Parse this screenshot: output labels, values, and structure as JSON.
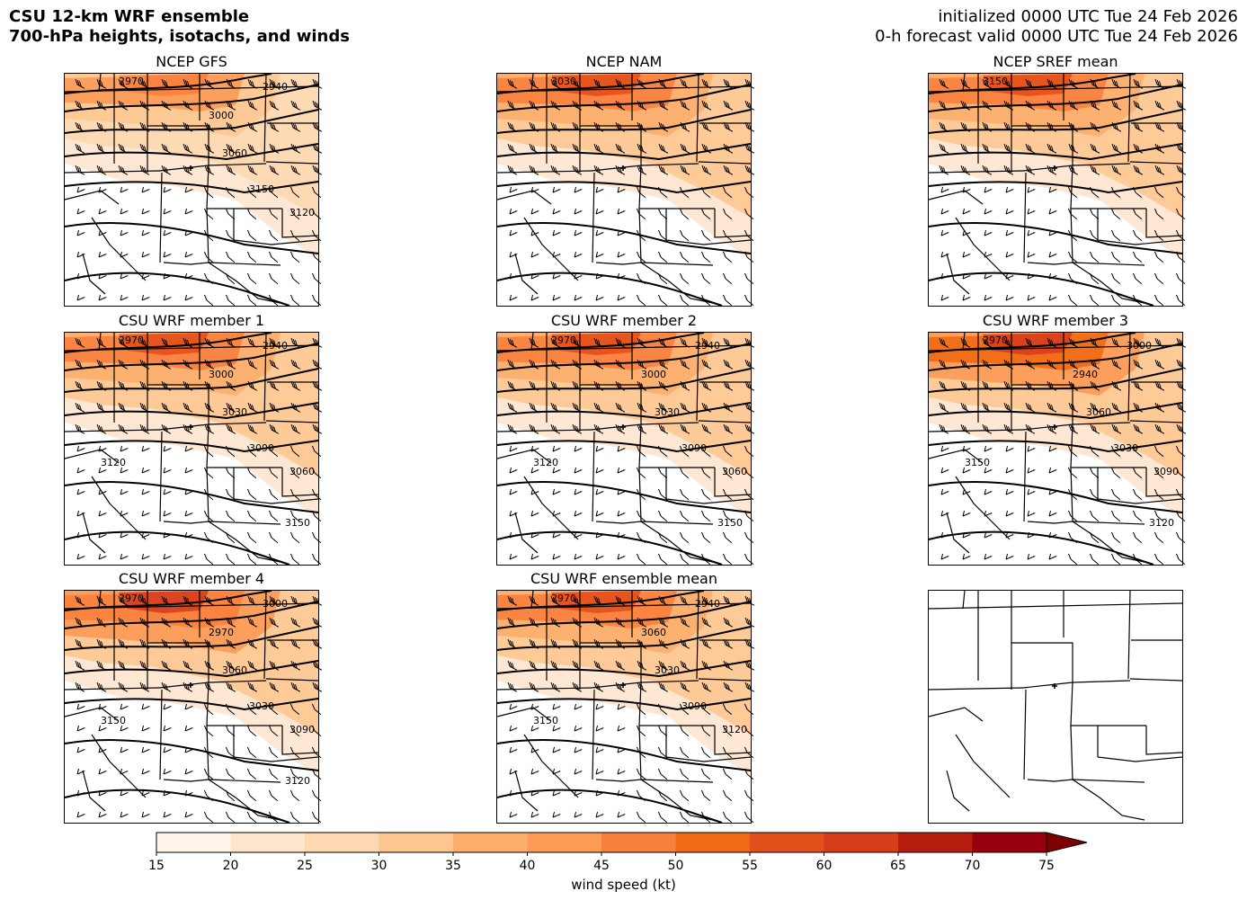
{
  "header": {
    "title_line1": "CSU 12-km WRF ensemble",
    "title_line2": "700-hPa heights, isotachs, and winds",
    "init_line": "initialized 0000 UTC Tue 24 Feb 2026",
    "valid_line": "0-h forecast valid 0000 UTC Tue 24 Feb 2026"
  },
  "panels": [
    {
      "title": "NCEP GFS",
      "contour_labels": [
        "2970",
        "2940",
        "3000",
        "3060",
        "3150",
        "3120"
      ],
      "jet_intensity": 0.7
    },
    {
      "title": "NCEP NAM",
      "contour_labels": [
        "3030"
      ],
      "jet_intensity": 0.85
    },
    {
      "title": "NCEP SREF mean",
      "contour_labels": [
        "3150"
      ],
      "jet_intensity": 0.9
    },
    {
      "title": "CSU WRF member 1",
      "contour_labels": [
        "2970",
        "2940",
        "3000",
        "3030",
        "3090",
        "3060",
        "3120",
        "3150"
      ],
      "jet_intensity": 0.9
    },
    {
      "title": "CSU WRF member 2",
      "contour_labels": [
        "2970",
        "2940",
        "3000",
        "3030",
        "3090",
        "3060",
        "3120",
        "3150"
      ],
      "jet_intensity": 0.9
    },
    {
      "title": "CSU WRF member 3",
      "contour_labels": [
        "2970",
        "3000",
        "2940",
        "3060",
        "3030",
        "3090",
        "3150",
        "3120"
      ],
      "jet_intensity": 1.0
    },
    {
      "title": "CSU WRF member 4",
      "contour_labels": [
        "2970",
        "3000",
        "2970",
        "3060",
        "3030",
        "3090",
        "3150",
        "3120"
      ],
      "jet_intensity": 0.95
    },
    {
      "title": "CSU WRF ensemble mean",
      "contour_labels": [
        "2970",
        "2940",
        "3060",
        "3030",
        "3090",
        "3120",
        "3150"
      ],
      "jet_intensity": 0.85
    },
    {
      "title": "",
      "contour_labels": [],
      "jet_intensity": 0
    }
  ],
  "colorbar": {
    "label": "wind speed (kt)",
    "ticks": [
      "15",
      "20",
      "25",
      "30",
      "35",
      "40",
      "45",
      "50",
      "55",
      "60",
      "65",
      "70",
      "75"
    ],
    "colors": [
      "#fff5eb",
      "#fee6ce",
      "#fdd8b0",
      "#fdc691",
      "#fdae6b",
      "#fd9a55",
      "#f9803c",
      "#f16913",
      "#e4501b",
      "#d63d1d",
      "#b71d0e",
      "#99000d",
      "#7f0000"
    ]
  }
}
